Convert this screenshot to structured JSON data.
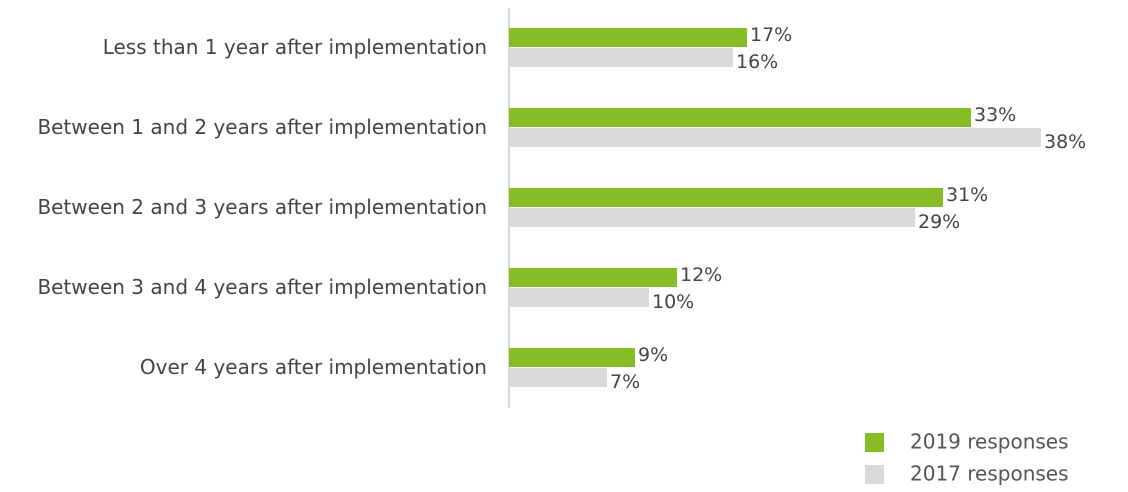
{
  "chart_data": {
    "type": "bar",
    "orientation": "horizontal",
    "categories": [
      "Less than 1 year after implementation",
      "Between 1 and 2 years after implementation",
      "Between 2 and 3 years after implementation",
      "Between 3 and 4 years after implementation",
      "Over 4 years after implementation"
    ],
    "series": [
      {
        "name": "2019 responses",
        "color": "#86bc25",
        "values": [
          17,
          33,
          31,
          12,
          9
        ],
        "value_labels": [
          "17%",
          "33%",
          "31%",
          "12%",
          "9%"
        ]
      },
      {
        "name": "2017 responses",
        "color": "#d9d9d9",
        "values": [
          16,
          38,
          29,
          10,
          7
        ],
        "value_labels": [
          "16%",
          "38%",
          "29%",
          "10%",
          "7%"
        ]
      }
    ]
  }
}
